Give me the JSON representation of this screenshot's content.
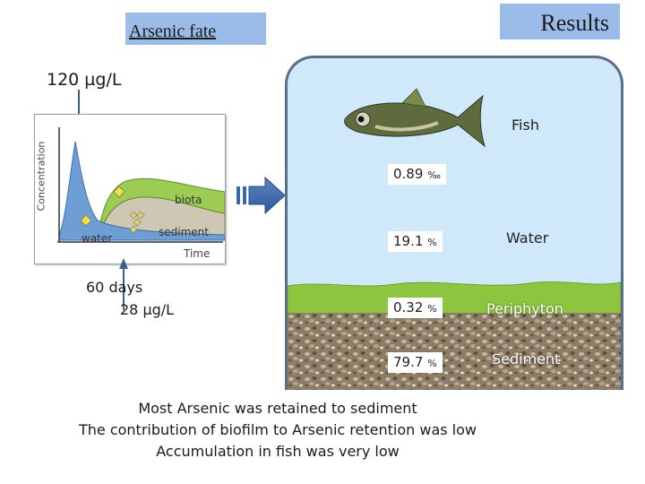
{
  "header": {
    "title": "Arsenic fate",
    "results_label": "Results"
  },
  "diagram": {
    "input_concentration": "120 µg/L",
    "output_days": "60 days",
    "output_concentration": "28 µg/L",
    "y_axis_label": "Concentration",
    "x_axis_label": "Time",
    "zone_labels": {
      "water": "water",
      "biota": "biota",
      "sediment": "sediment"
    }
  },
  "results": {
    "compartments": [
      {
        "name": "Fish",
        "value": "0.89",
        "unit": "‰"
      },
      {
        "name": "Water",
        "value": "19.1",
        "unit": "%"
      },
      {
        "name": "Periphyton",
        "value": "0.32",
        "unit": "%"
      },
      {
        "name": "Sediment",
        "value": "79.7",
        "unit": "%"
      }
    ]
  },
  "conclusions": [
    "Most Arsenic was retained to sediment",
    "The contribution of biofilm to Arsenic retention was low",
    "Accumulation in fish was very low"
  ],
  "colors": {
    "badge": "#9bbbe8",
    "tank_water": "#cfe8fa",
    "periphyton": "#8cc63f",
    "water_curve": "#6e9fd4",
    "biota_band": "#9ccc52"
  }
}
